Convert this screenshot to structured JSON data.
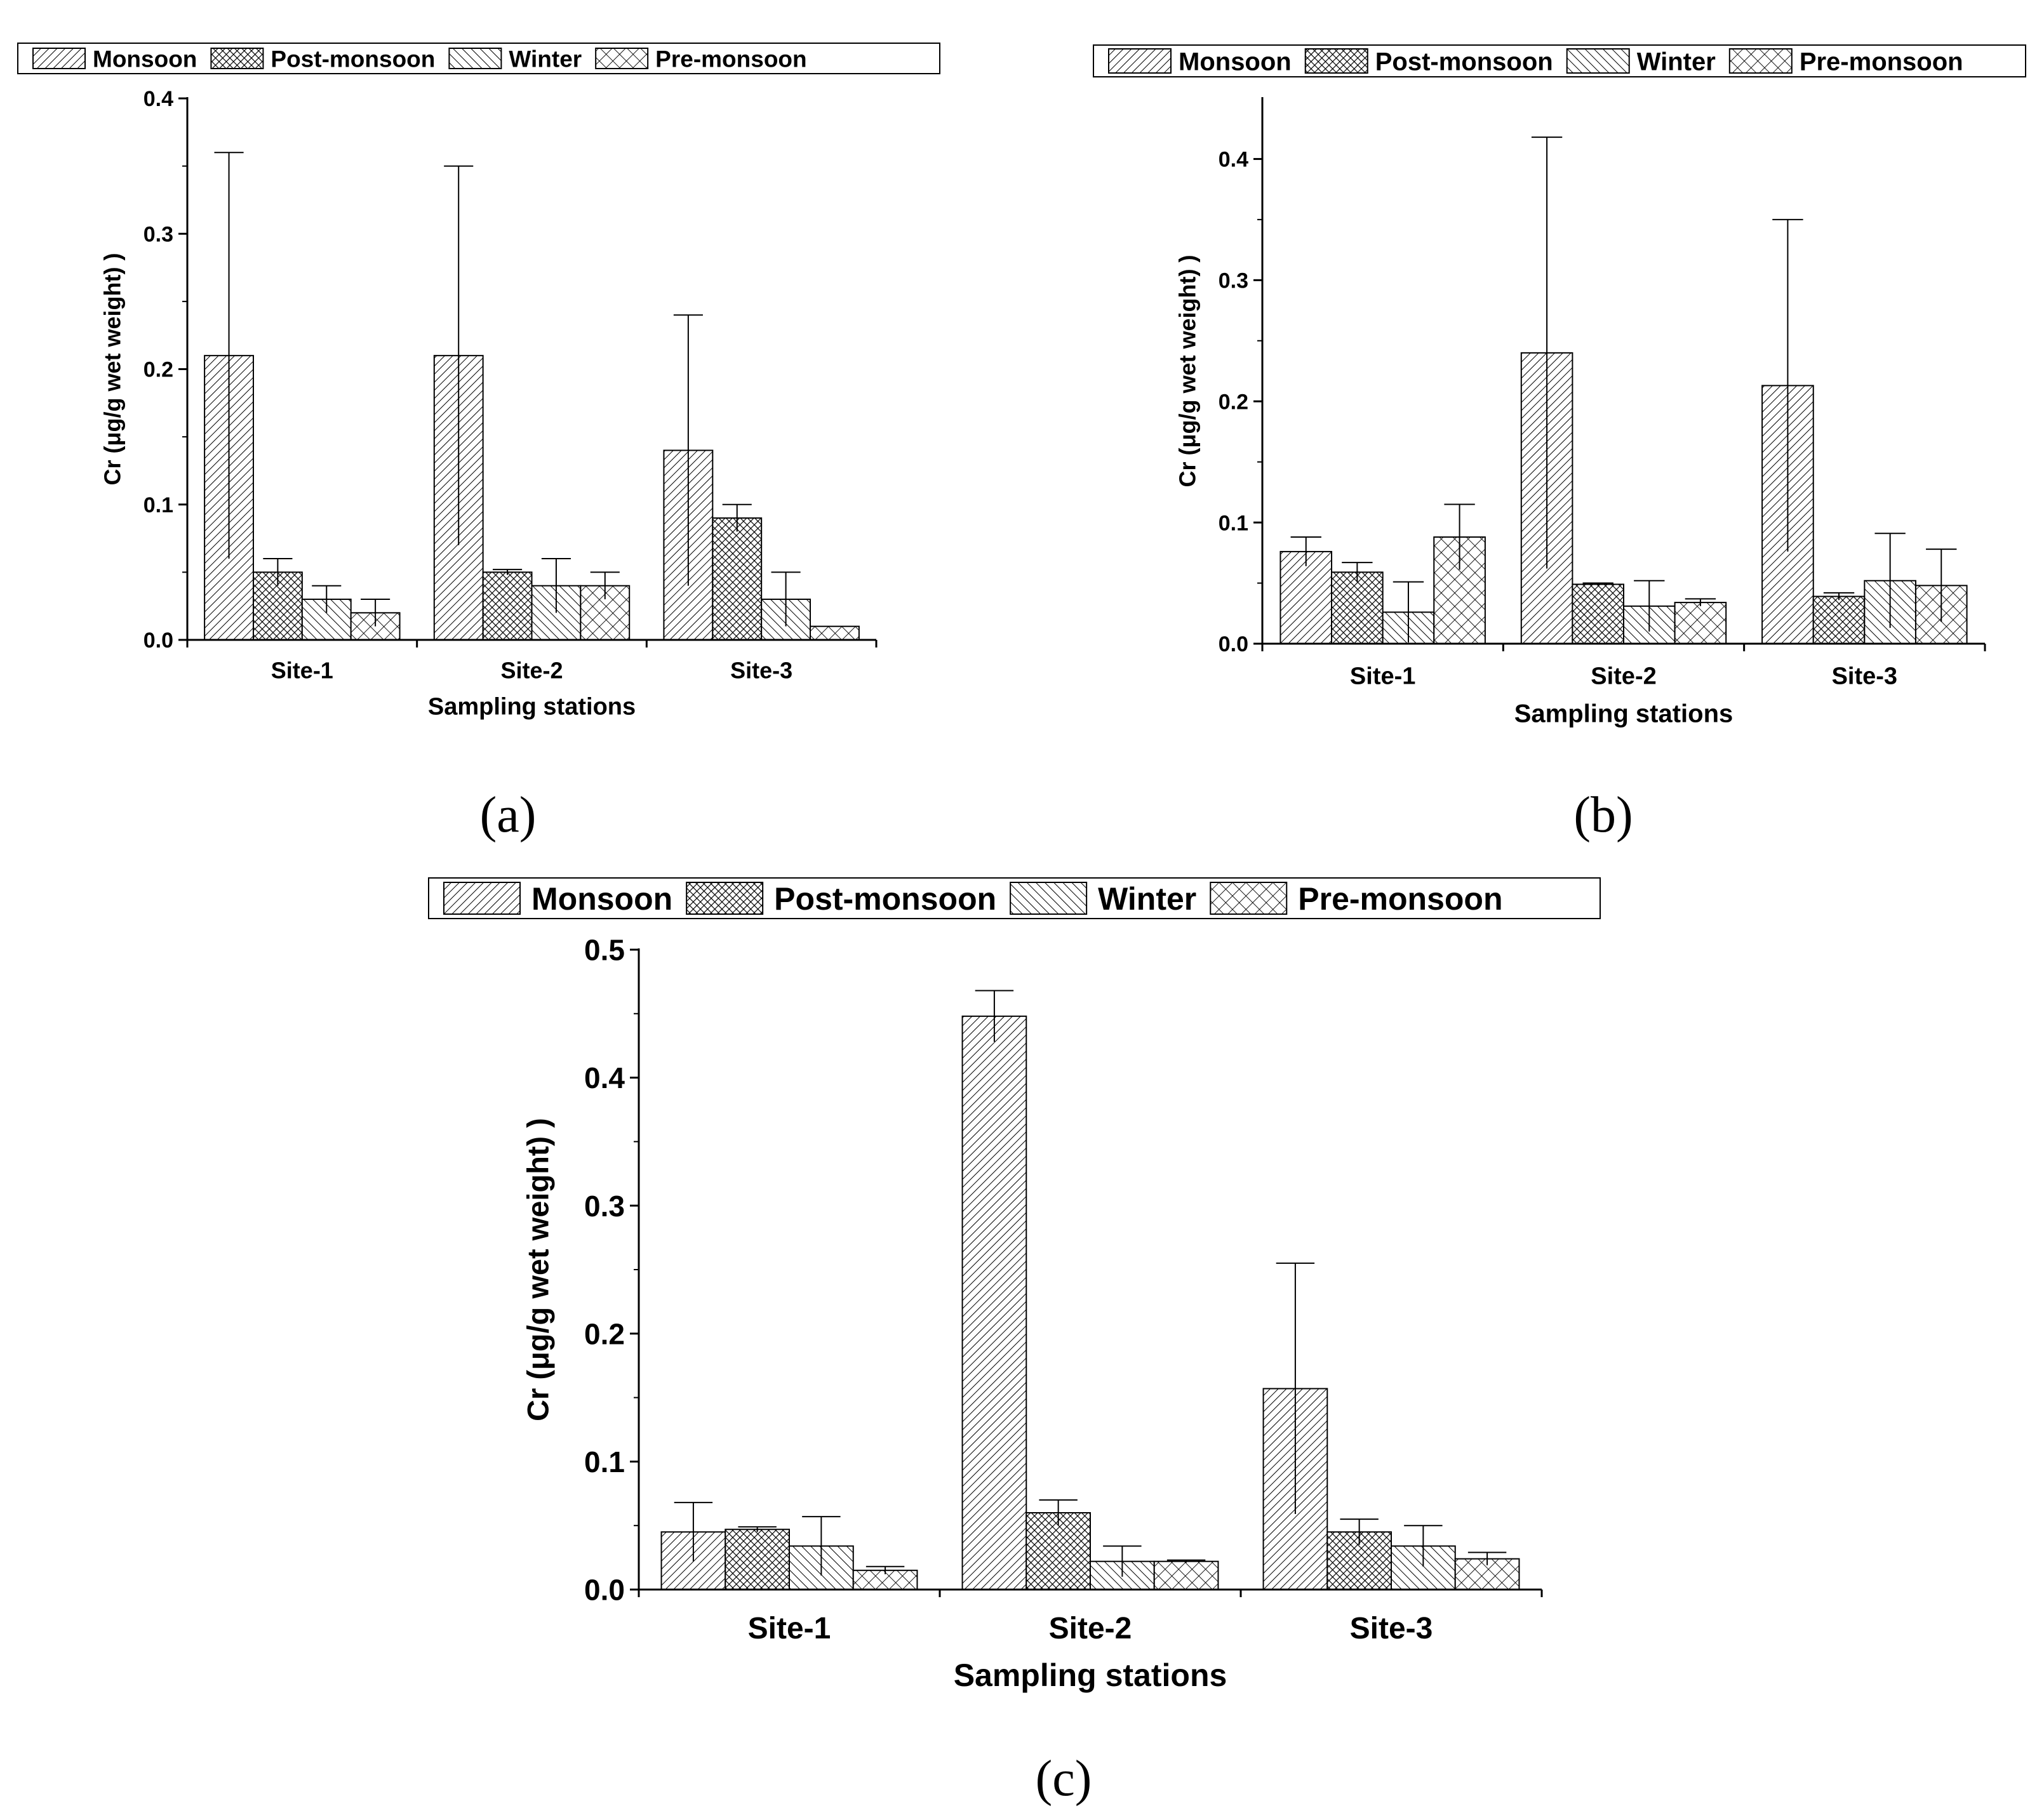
{
  "figure": {
    "captions": [
      "(a)",
      "(b)",
      "(c)"
    ]
  },
  "styles": {
    "ink": "#000000",
    "background": "#ffffff",
    "bar_fill": "#ffffff"
  },
  "chart_data": [
    {
      "panel": "(a)",
      "type": "bar",
      "title": "",
      "xlabel": "Sampling stations",
      "ylabel": "Cr (μg/g wet weight) )",
      "categories": [
        "Site-1",
        "Site-2",
        "Site-3"
      ],
      "ylim": [
        0,
        0.4
      ],
      "yticks": [
        0.0,
        0.1,
        0.2,
        0.3,
        0.4
      ],
      "ytick_labels": [
        "0.0",
        "0.1",
        "0.2",
        "0.3",
        "0.4"
      ],
      "grid": false,
      "legend_position": "top",
      "series": [
        {
          "name": "Monsoon",
          "pattern": "diag-fine",
          "values": [
            0.21,
            0.21,
            0.14
          ],
          "errors": [
            0.15,
            0.14,
            0.1
          ]
        },
        {
          "name": "Post-monsoon",
          "pattern": "crosshatch-dense",
          "values": [
            0.05,
            0.05,
            0.09
          ],
          "errors": [
            0.01,
            0.002,
            0.01
          ]
        },
        {
          "name": "Winter",
          "pattern": "diag-back",
          "values": [
            0.03,
            0.04,
            0.03
          ],
          "errors": [
            0.01,
            0.02,
            0.02
          ]
        },
        {
          "name": "Pre-monsoon",
          "pattern": "crosshatch-open",
          "values": [
            0.02,
            0.04,
            0.01
          ],
          "errors": [
            0.01,
            0.01,
            0.0
          ]
        }
      ]
    },
    {
      "panel": "(b)",
      "type": "bar",
      "title": "",
      "xlabel": "Sampling stations",
      "ylabel": "Cr (μg/g wet weight) )",
      "categories": [
        "Site-1",
        "Site-2",
        "Site-3"
      ],
      "ylim": [
        0,
        0.45
      ],
      "yticks": [
        0.0,
        0.1,
        0.2,
        0.3,
        0.4
      ],
      "ytick_labels": [
        "0.0",
        "0.1",
        "0.2",
        "0.3",
        "0.4"
      ],
      "grid": false,
      "legend_position": "top",
      "series": [
        {
          "name": "Monsoon",
          "pattern": "diag-fine",
          "values": [
            0.076,
            0.24,
            0.213
          ],
          "errors": [
            0.012,
            0.178,
            0.137
          ]
        },
        {
          "name": "Post-monsoon",
          "pattern": "crosshatch-dense",
          "values": [
            0.059,
            0.049,
            0.039
          ],
          "errors": [
            0.008,
            0.001,
            0.003
          ]
        },
        {
          "name": "Winter",
          "pattern": "diag-back",
          "values": [
            0.026,
            0.031,
            0.052
          ],
          "errors": [
            0.025,
            0.021,
            0.039
          ]
        },
        {
          "name": "Pre-monsoon",
          "pattern": "crosshatch-open",
          "values": [
            0.088,
            0.034,
            0.048
          ],
          "errors": [
            0.027,
            0.003,
            0.03
          ]
        }
      ]
    },
    {
      "panel": "(c)",
      "type": "bar",
      "title": "",
      "xlabel": "Sampling stations",
      "ylabel": "Cr (μg/g wet weight) )",
      "categories": [
        "Site-1",
        "Site-2",
        "Site-3"
      ],
      "ylim": [
        0,
        0.5
      ],
      "yticks": [
        0.0,
        0.1,
        0.2,
        0.3,
        0.4,
        0.5
      ],
      "ytick_labels": [
        "0.0",
        "0.1",
        "0.2",
        "0.3",
        "0.4",
        "0.5"
      ],
      "grid": false,
      "legend_position": "top",
      "series": [
        {
          "name": "Monsoon",
          "pattern": "diag-fine",
          "values": [
            0.045,
            0.448,
            0.157
          ],
          "errors": [
            0.023,
            0.02,
            0.098
          ]
        },
        {
          "name": "Post-monsoon",
          "pattern": "crosshatch-dense",
          "values": [
            0.047,
            0.06,
            0.045
          ],
          "errors": [
            0.002,
            0.01,
            0.01
          ]
        },
        {
          "name": "Winter",
          "pattern": "diag-back",
          "values": [
            0.034,
            0.022,
            0.034
          ],
          "errors": [
            0.023,
            0.012,
            0.016
          ]
        },
        {
          "name": "Pre-monsoon",
          "pattern": "crosshatch-open",
          "values": [
            0.015,
            0.022,
            0.024
          ],
          "errors": [
            0.003,
            0.001,
            0.005
          ]
        }
      ]
    }
  ]
}
